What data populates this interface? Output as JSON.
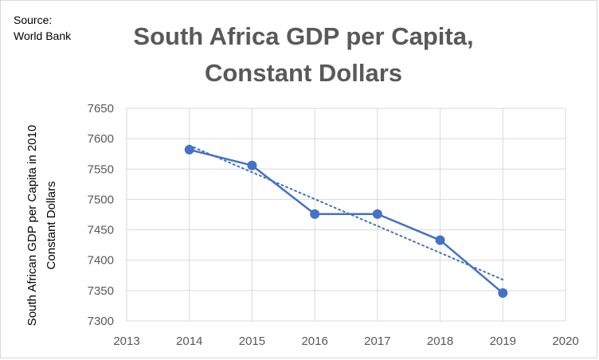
{
  "source_note": {
    "line1": "Source:",
    "line2": "World Bank"
  },
  "chart_data": {
    "type": "line",
    "title": "South Africa GDP per Capita,\nConstant Dollars",
    "xlabel": "",
    "ylabel_line1": "South African GDP per Capita in 2010",
    "ylabel_line2": "Constant Dollars",
    "x": [
      2014,
      2015,
      2016,
      2017,
      2018,
      2019
    ],
    "series": [
      {
        "values": [
          7582,
          7556,
          7476,
          7476,
          7433,
          7346
        ]
      }
    ],
    "trendline": {
      "type": "linear",
      "start": [
        2014,
        7589
      ],
      "end": [
        2019,
        7368
      ],
      "style": "dotted"
    },
    "xlim": [
      2013,
      2020
    ],
    "ylim": [
      7300,
      7650
    ],
    "x_ticks": [
      "2013",
      "2014",
      "2015",
      "2016",
      "2017",
      "2018",
      "2019",
      "2020"
    ],
    "y_ticks": [
      "7300",
      "7350",
      "7400",
      "7450",
      "7500",
      "7550",
      "7600",
      "7650"
    ],
    "grid": true,
    "legend": "none",
    "colors": {
      "series": "#4472c4",
      "grid": "#d9d9d9",
      "text": "#595959"
    }
  }
}
